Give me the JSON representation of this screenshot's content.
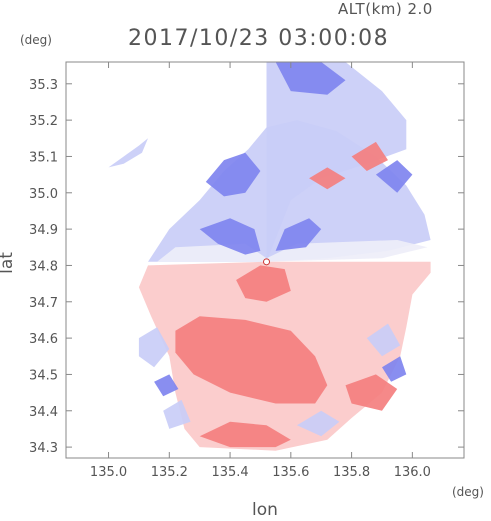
{
  "header": {
    "altitude": "ALT(km)  2.0",
    "timestamp": "2017/10/23 03:00:08"
  },
  "colors": {
    "positive": "#f47f7f",
    "positive_light": "#fbc9c9",
    "negative": "#7f84ef",
    "negative_light": "#c9cdf7",
    "neutral": "#eeeef8",
    "axis": "#555555"
  },
  "chart_data": {
    "type": "heatmap",
    "title": "2017/10/23 03:00:08",
    "subtitle": "ALT(km)  2.0",
    "xlabel": "lon",
    "ylabel": "lat",
    "x_unit": "(deg)",
    "y_unit": "(deg)",
    "xlim": [
      134.86,
      136.17
    ],
    "ylim": [
      34.27,
      35.36
    ],
    "x_ticks": [
      135.0,
      135.2,
      135.4,
      135.6,
      135.8,
      136.0
    ],
    "x_tick_labels": [
      "135.0",
      "135.2",
      "135.4",
      "135.6",
      "135.8",
      "136.0"
    ],
    "y_ticks": [
      34.3,
      34.4,
      34.5,
      34.6,
      34.7,
      34.8,
      34.9,
      35.0,
      35.1,
      35.2,
      35.3
    ],
    "y_tick_labels": [
      "34.3",
      "34.4",
      "34.5",
      "34.6",
      "34.7",
      "34.8",
      "34.9",
      "35.0",
      "35.1",
      "35.2",
      "35.3"
    ],
    "radar_center": [
      135.52,
      34.81
    ],
    "grid": false,
    "legend": "none",
    "regions": [
      {
        "value": "negative_light",
        "points": [
          [
            135.13,
            34.81
          ],
          [
            135.2,
            34.9
          ],
          [
            135.3,
            34.98
          ],
          [
            135.38,
            35.06
          ],
          [
            135.46,
            35.12
          ],
          [
            135.52,
            35.18
          ],
          [
            135.62,
            35.2
          ],
          [
            135.75,
            35.17
          ],
          [
            135.88,
            35.1
          ],
          [
            135.98,
            35.02
          ],
          [
            136.04,
            34.94
          ],
          [
            136.06,
            34.87
          ],
          [
            135.92,
            34.84
          ],
          [
            135.72,
            34.82
          ],
          [
            135.52,
            34.81
          ]
        ]
      },
      {
        "value": "negative_light",
        "points": [
          [
            135.52,
            34.81
          ],
          [
            135.52,
            35.36
          ],
          [
            135.78,
            35.36
          ],
          [
            135.9,
            35.28
          ],
          [
            135.98,
            35.2
          ],
          [
            135.98,
            35.12
          ],
          [
            135.85,
            35.08
          ],
          [
            135.7,
            35.04
          ],
          [
            135.6,
            34.98
          ]
        ]
      },
      {
        "value": "neutral",
        "points": [
          [
            135.16,
            34.81
          ],
          [
            135.22,
            34.85
          ],
          [
            135.45,
            34.86
          ],
          [
            135.52,
            34.82
          ],
          [
            135.62,
            34.86
          ],
          [
            135.95,
            34.87
          ],
          [
            136.05,
            34.85
          ],
          [
            135.9,
            34.82
          ],
          [
            135.52,
            34.81
          ]
        ]
      },
      {
        "value": "negative",
        "points": [
          [
            135.55,
            35.36
          ],
          [
            135.7,
            35.36
          ],
          [
            135.78,
            35.31
          ],
          [
            135.72,
            35.27
          ],
          [
            135.6,
            35.28
          ]
        ]
      },
      {
        "value": "negative",
        "points": [
          [
            135.32,
            35.03
          ],
          [
            135.38,
            35.09
          ],
          [
            135.45,
            35.11
          ],
          [
            135.5,
            35.06
          ],
          [
            135.45,
            35.0
          ],
          [
            135.38,
            34.99
          ]
        ]
      },
      {
        "value": "negative",
        "points": [
          [
            135.3,
            34.9
          ],
          [
            135.4,
            34.93
          ],
          [
            135.48,
            34.9
          ],
          [
            135.5,
            34.84
          ],
          [
            135.45,
            34.83
          ],
          [
            135.36,
            34.86
          ]
        ]
      },
      {
        "value": "negative",
        "points": [
          [
            135.55,
            34.84
          ],
          [
            135.58,
            34.9
          ],
          [
            135.66,
            34.93
          ],
          [
            135.7,
            34.9
          ],
          [
            135.65,
            34.85
          ]
        ]
      },
      {
        "value": "negative",
        "points": [
          [
            135.88,
            35.05
          ],
          [
            135.95,
            35.09
          ],
          [
            136.0,
            35.05
          ],
          [
            135.95,
            35.0
          ]
        ]
      },
      {
        "value": "negative_light",
        "points": [
          [
            135.0,
            35.07
          ],
          [
            135.05,
            35.1
          ],
          [
            135.1,
            35.13
          ],
          [
            135.13,
            35.15
          ],
          [
            135.11,
            35.11
          ],
          [
            135.05,
            35.08
          ]
        ]
      },
      {
        "value": "positive",
        "points": [
          [
            135.8,
            35.1
          ],
          [
            135.88,
            35.14
          ],
          [
            135.92,
            35.09
          ],
          [
            135.85,
            35.06
          ]
        ]
      },
      {
        "value": "positive",
        "points": [
          [
            135.66,
            35.04
          ],
          [
            135.72,
            35.07
          ],
          [
            135.78,
            35.04
          ],
          [
            135.72,
            35.01
          ]
        ]
      },
      {
        "value": "positive_light",
        "points": [
          [
            135.52,
            34.81
          ],
          [
            135.13,
            34.8
          ],
          [
            135.1,
            34.74
          ],
          [
            135.14,
            34.66
          ],
          [
            135.2,
            34.55
          ],
          [
            135.22,
            34.45
          ],
          [
            135.25,
            34.35
          ],
          [
            135.3,
            34.3
          ],
          [
            135.55,
            34.29
          ],
          [
            135.72,
            34.32
          ],
          [
            135.8,
            34.38
          ],
          [
            135.9,
            34.45
          ],
          [
            135.96,
            34.55
          ],
          [
            135.98,
            34.63
          ],
          [
            136.0,
            34.72
          ],
          [
            136.06,
            34.78
          ],
          [
            136.06,
            34.81
          ]
        ]
      },
      {
        "value": "positive",
        "points": [
          [
            135.42,
            34.76
          ],
          [
            135.5,
            34.8
          ],
          [
            135.58,
            34.79
          ],
          [
            135.6,
            34.73
          ],
          [
            135.52,
            34.7
          ],
          [
            135.45,
            34.71
          ]
        ]
      },
      {
        "value": "positive",
        "points": [
          [
            135.22,
            34.62
          ],
          [
            135.3,
            34.66
          ],
          [
            135.45,
            34.65
          ],
          [
            135.6,
            34.62
          ],
          [
            135.68,
            34.55
          ],
          [
            135.72,
            34.47
          ],
          [
            135.68,
            34.42
          ],
          [
            135.55,
            34.42
          ],
          [
            135.4,
            34.45
          ],
          [
            135.28,
            34.5
          ],
          [
            135.22,
            34.56
          ]
        ]
      },
      {
        "value": "positive",
        "points": [
          [
            135.3,
            34.33
          ],
          [
            135.4,
            34.37
          ],
          [
            135.52,
            34.36
          ],
          [
            135.6,
            34.32
          ],
          [
            135.55,
            34.3
          ],
          [
            135.4,
            34.3
          ]
        ]
      },
      {
        "value": "positive",
        "points": [
          [
            135.78,
            34.47
          ],
          [
            135.88,
            34.5
          ],
          [
            135.95,
            34.46
          ],
          [
            135.9,
            34.4
          ],
          [
            135.8,
            34.42
          ]
        ]
      },
      {
        "value": "negative_light",
        "points": [
          [
            135.1,
            34.6
          ],
          [
            135.16,
            34.63
          ],
          [
            135.2,
            34.57
          ],
          [
            135.15,
            34.52
          ],
          [
            135.1,
            34.55
          ]
        ]
      },
      {
        "value": "negative_light",
        "points": [
          [
            135.18,
            34.4
          ],
          [
            135.24,
            34.43
          ],
          [
            135.27,
            34.37
          ],
          [
            135.2,
            34.35
          ]
        ]
      },
      {
        "value": "negative_light",
        "points": [
          [
            135.62,
            34.36
          ],
          [
            135.7,
            34.4
          ],
          [
            135.76,
            34.37
          ],
          [
            135.7,
            34.33
          ]
        ]
      },
      {
        "value": "negative_light",
        "points": [
          [
            135.85,
            34.6
          ],
          [
            135.92,
            34.64
          ],
          [
            135.96,
            34.58
          ],
          [
            135.9,
            34.55
          ]
        ]
      },
      {
        "value": "negative",
        "points": [
          [
            135.15,
            34.48
          ],
          [
            135.2,
            34.5
          ],
          [
            135.23,
            34.46
          ],
          [
            135.18,
            34.44
          ]
        ]
      },
      {
        "value": "negative",
        "points": [
          [
            135.9,
            34.52
          ],
          [
            135.96,
            34.55
          ],
          [
            135.98,
            34.5
          ],
          [
            135.93,
            34.48
          ]
        ]
      }
    ]
  }
}
